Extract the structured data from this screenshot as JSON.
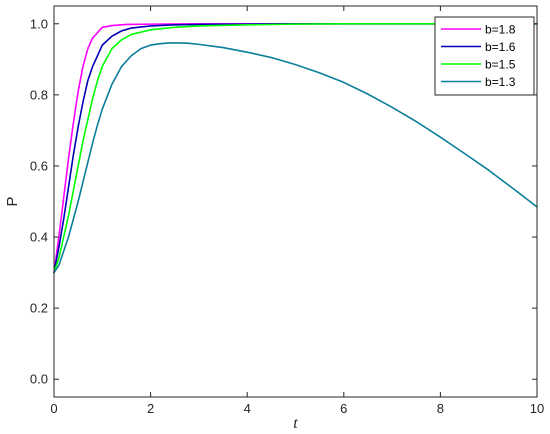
{
  "chart_data": {
    "type": "line",
    "title": "",
    "xlabel": "t",
    "ylabel": "P",
    "xlim": [
      0,
      10
    ],
    "ylim": [
      -0.05,
      1.05
    ],
    "xticks": [
      0,
      2,
      4,
      6,
      8,
      10
    ],
    "xtick_labels": [
      "0",
      "2",
      "4",
      "6",
      "8",
      "10"
    ],
    "yticks": [
      0.0,
      0.2,
      0.4,
      0.6,
      0.8,
      1.0
    ],
    "ytick_labels": [
      "0.0",
      "0.2",
      "0.4",
      "0.6",
      "0.8",
      "1.0"
    ],
    "grid": false,
    "legend_position": "top-right",
    "series": [
      {
        "name": "b=1.8",
        "color": "#ff00ff",
        "x": [
          0,
          0.1,
          0.2,
          0.3,
          0.4,
          0.5,
          0.6,
          0.7,
          0.8,
          1.0,
          1.2,
          1.5,
          2,
          3,
          4,
          5,
          6,
          7,
          8,
          9,
          10
        ],
        "y": [
          0.3,
          0.4,
          0.51,
          0.62,
          0.72,
          0.81,
          0.88,
          0.93,
          0.96,
          0.99,
          0.995,
          0.998,
          0.999,
          1.0,
          1.0,
          1.0,
          1.0,
          1.0,
          1.0,
          1.0,
          1.0
        ]
      },
      {
        "name": "b=1.6",
        "color": "#0000b4",
        "x": [
          0,
          0.1,
          0.2,
          0.3,
          0.4,
          0.5,
          0.6,
          0.7,
          0.8,
          1.0,
          1.2,
          1.4,
          1.6,
          2,
          2.5,
          3,
          4,
          5,
          6,
          7,
          8,
          9,
          10
        ],
        "y": [
          0.3,
          0.37,
          0.45,
          0.54,
          0.63,
          0.71,
          0.78,
          0.84,
          0.88,
          0.94,
          0.965,
          0.98,
          0.988,
          0.994,
          0.997,
          0.998,
          0.999,
          1.0,
          1.0,
          1.0,
          1.0,
          1.0,
          1.0
        ]
      },
      {
        "name": "b=1.5",
        "color": "#00ff00",
        "x": [
          0,
          0.1,
          0.2,
          0.3,
          0.4,
          0.5,
          0.6,
          0.7,
          0.8,
          0.9,
          1.0,
          1.2,
          1.4,
          1.6,
          2,
          2.5,
          3,
          4,
          5,
          6,
          7,
          8,
          9,
          10
        ],
        "y": [
          0.3,
          0.34,
          0.4,
          0.46,
          0.53,
          0.6,
          0.67,
          0.73,
          0.79,
          0.84,
          0.88,
          0.93,
          0.955,
          0.97,
          0.983,
          0.99,
          0.994,
          0.997,
          0.999,
          1.0,
          1.0,
          1.0,
          1.0,
          1.0
        ]
      },
      {
        "name": "b=1.3",
        "color": "#0a7e9a",
        "x": [
          0,
          0.1,
          0.2,
          0.3,
          0.4,
          0.5,
          0.6,
          0.7,
          0.8,
          0.9,
          1.0,
          1.2,
          1.4,
          1.6,
          1.8,
          2.0,
          2.2,
          2.4,
          2.6,
          2.8,
          3.0,
          3.5,
          4,
          4.5,
          5,
          5.5,
          6,
          6.5,
          7,
          7.5,
          8,
          8.5,
          9,
          9.5,
          10
        ],
        "y": [
          0.3,
          0.32,
          0.36,
          0.4,
          0.45,
          0.5,
          0.555,
          0.61,
          0.665,
          0.715,
          0.76,
          0.83,
          0.88,
          0.91,
          0.93,
          0.94,
          0.944,
          0.946,
          0.946,
          0.945,
          0.942,
          0.933,
          0.92,
          0.905,
          0.885,
          0.862,
          0.835,
          0.802,
          0.765,
          0.725,
          0.681,
          0.635,
          0.588,
          0.537,
          0.485
        ]
      }
    ]
  }
}
